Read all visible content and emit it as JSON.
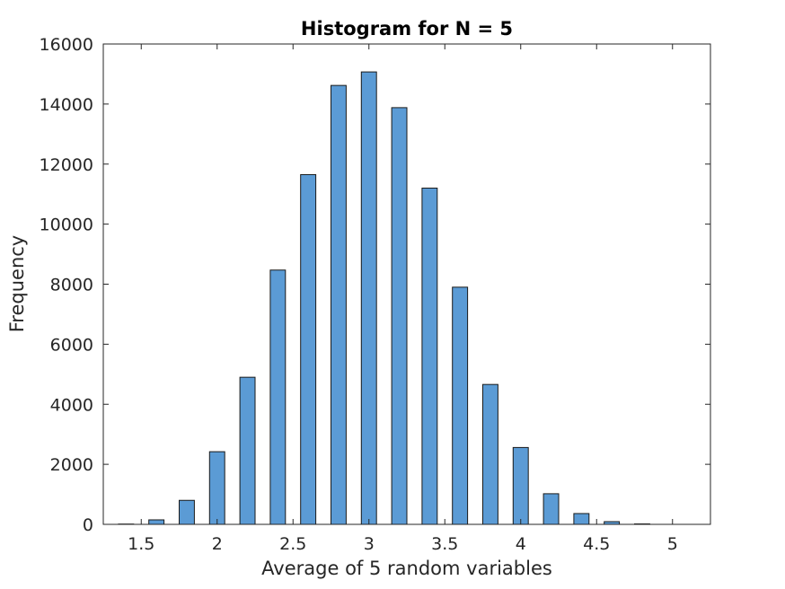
{
  "chart_data": {
    "type": "bar",
    "title": "Histogram for N = 5",
    "xlabel": "Average of 5 random variables",
    "ylabel": "Frequency",
    "xlim": [
      1.25,
      5.25
    ],
    "ylim": [
      0,
      16000
    ],
    "bin_width": 0.1,
    "xticks": [
      1.5,
      2,
      2.5,
      3,
      3.5,
      4,
      4.5,
      5
    ],
    "xtick_labels": [
      "1.5",
      "2",
      "2.5",
      "3",
      "3.5",
      "4",
      "4.5",
      "5"
    ],
    "yticks": [
      0,
      2000,
      4000,
      6000,
      8000,
      10000,
      12000,
      14000,
      16000
    ],
    "ytick_labels": [
      "0",
      "2000",
      "4000",
      "6000",
      "8000",
      "10000",
      "12000",
      "14000",
      "16000"
    ],
    "bar_color": "#5B9BD5",
    "edge_color": "#1a1a1a",
    "grid": false,
    "bins": [
      {
        "x": 1.4,
        "value": 10
      },
      {
        "x": 1.6,
        "value": 150
      },
      {
        "x": 1.8,
        "value": 800
      },
      {
        "x": 2.0,
        "value": 2420
      },
      {
        "x": 2.2,
        "value": 4900
      },
      {
        "x": 2.4,
        "value": 8470
      },
      {
        "x": 2.6,
        "value": 11650
      },
      {
        "x": 2.8,
        "value": 14620
      },
      {
        "x": 3.0,
        "value": 15070
      },
      {
        "x": 3.2,
        "value": 13880
      },
      {
        "x": 3.4,
        "value": 11200
      },
      {
        "x": 3.6,
        "value": 7900
      },
      {
        "x": 3.8,
        "value": 4660
      },
      {
        "x": 4.0,
        "value": 2560
      },
      {
        "x": 4.2,
        "value": 1020
      },
      {
        "x": 4.4,
        "value": 360
      },
      {
        "x": 4.6,
        "value": 90
      },
      {
        "x": 4.8,
        "value": 15
      }
    ]
  }
}
